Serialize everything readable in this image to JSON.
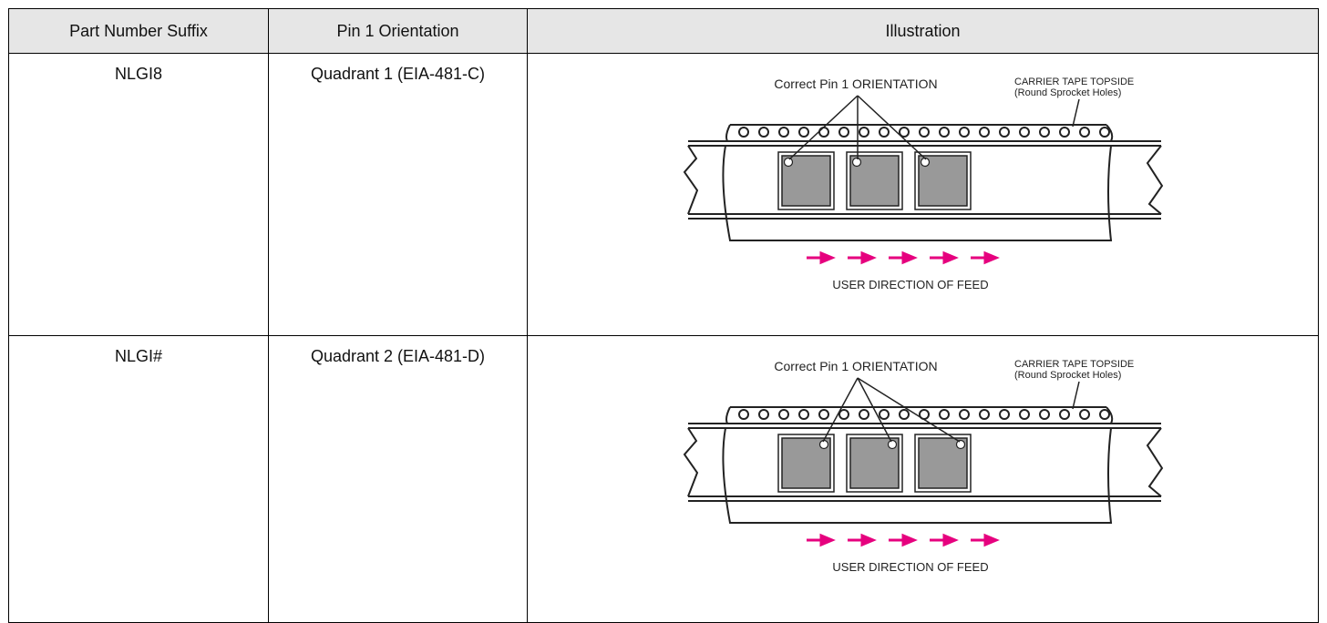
{
  "table": {
    "headers": [
      "Part Number Suffix",
      "Pin 1 Orientation",
      "Illustration"
    ],
    "rows": [
      {
        "suffix": "NLGI8",
        "orientation": "Quadrant 1 (EIA-481-C)",
        "illustration": {
          "pin_label": "Correct Pin 1 ORIENTATION",
          "carrier_label": [
            "CARRIER TAPE TOPSIDE",
            "(Round Sprocket Holes)"
          ],
          "feed_label": "USER DIRECTION OF FEED"
        }
      },
      {
        "suffix": "NLGI#",
        "orientation": "Quadrant 2 (EIA-481-D)",
        "illustration": {
          "pin_label": "Correct Pin 1 ORIENTATION",
          "carrier_label": [
            "CARRIER TAPE TOPSIDE",
            "(Round Sprocket Holes)"
          ],
          "feed_label": "USER DIRECTION OF FEED"
        }
      }
    ]
  }
}
